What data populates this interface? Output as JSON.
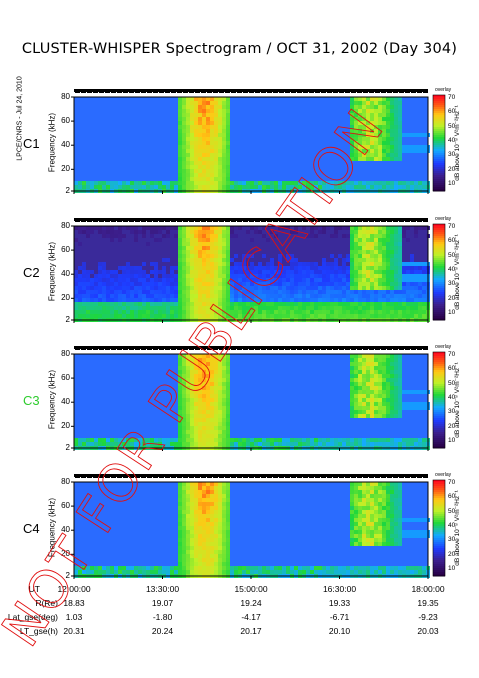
{
  "title": "CLUSTER-WHISPER Spectrogram / OCT 31, 2002 (Day 304)",
  "side_label": "LPCE/CNRS - Jul 24, 2010",
  "watermark": "NOT FOR PUBLICATION",
  "colors": {
    "background": "#2a6bff",
    "low": "#3a1a7a",
    "mid": "#2ed43a",
    "high": "#ff1a1a"
  },
  "chart_data": {
    "type": "heatmap",
    "panels": [
      {
        "name": "C1",
        "label_color": "#000000"
      },
      {
        "name": "C2",
        "label_color": "#000000"
      },
      {
        "name": "C3",
        "label_color": "#2ecc2e"
      },
      {
        "name": "C4",
        "label_color": "#000000"
      }
    ],
    "ylabel": "Frequency (kHz)",
    "y_ticks": [
      2,
      20,
      40,
      60,
      80
    ],
    "ylim": [
      2,
      80
    ],
    "colorbar": {
      "title": "dB above 10⁻⁸ V²m⁻²Hz⁻¹",
      "top_label": "overlay",
      "ticks": [
        10,
        20,
        30,
        40,
        50,
        60,
        70
      ],
      "range": [
        5,
        72
      ]
    },
    "x_ticks": [
      "12:00:00",
      "13:30:00",
      "15:00:00",
      "16:30:00",
      "18:00:00"
    ],
    "ephemeris": [
      {
        "label": "UT",
        "values": [
          "12:00:00",
          "13:30:00",
          "15:00:00",
          "16:30:00",
          "18:00:00"
        ]
      },
      {
        "label": "R(Re)",
        "values": [
          "18.83",
          "19.07",
          "19.24",
          "19.33",
          "19.35"
        ]
      },
      {
        "label": "Lat_gse(deg)",
        "values": [
          "1.03",
          "-1.80",
          "-4.17",
          "-6.71",
          "-9.23"
        ]
      },
      {
        "label": "LT_gse(h)",
        "values": [
          "20.31",
          "20.24",
          "20.17",
          "20.10",
          "20.03"
        ]
      }
    ]
  }
}
